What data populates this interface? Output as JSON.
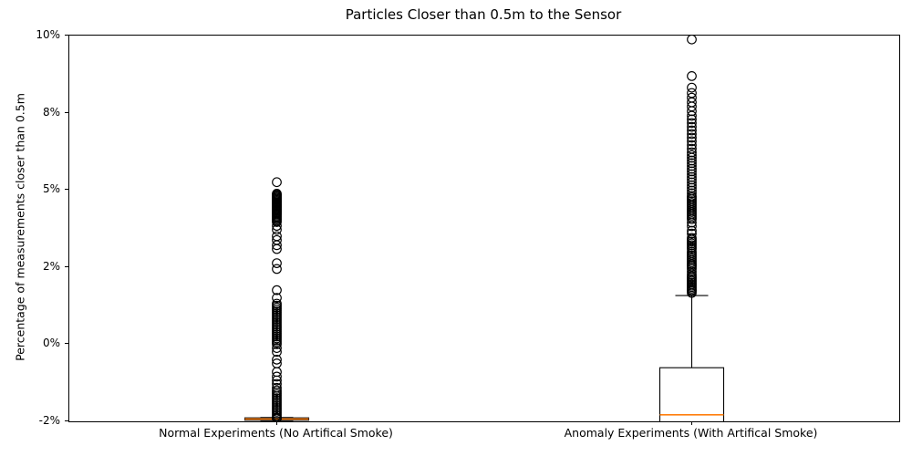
{
  "chart_data": {
    "type": "box",
    "title": "Particles Closer than 0.5m to the Sensor",
    "xlabel": "",
    "ylabel": "Percentage of measurements closer than 0.5m",
    "categories": [
      "Normal Experiments (No Artifical Smoke)",
      "Anomaly Experiments (With Artifical Smoke)"
    ],
    "y_ticks": {
      "values": [
        10,
        8,
        5,
        2,
        0,
        -2
      ],
      "labels": [
        "10%",
        "8%",
        "5%",
        "2%",
        "0%",
        "-2%"
      ],
      "note": "ticks are equally spaced on the axis despite uneven value steps"
    },
    "grid": false,
    "legend": false,
    "colors": {
      "box_edge": "#000000",
      "median": "#ff7f0e",
      "background": "#ffffff"
    },
    "series": [
      {
        "name": "Normal Experiments (No Artifical Smoke)",
        "q1": -1.97,
        "median": -1.94,
        "q3": -1.91,
        "whisker_low": -1.98,
        "whisker_high": -1.9,
        "outliers": [
          5.3,
          4.85,
          4.81,
          4.77,
          4.73,
          4.69,
          4.65,
          4.61,
          4.57,
          4.53,
          4.49,
          4.45,
          4.41,
          4.37,
          4.33,
          4.29,
          4.25,
          4.21,
          4.17,
          4.13,
          4.09,
          4.05,
          4.0,
          3.95,
          3.9,
          3.85,
          3.8,
          3.75,
          3.6,
          3.45,
          3.2,
          3.05,
          2.85,
          2.7,
          2.15,
          1.95,
          1.4,
          1.2,
          1.05,
          1.0,
          0.95,
          0.9,
          0.85,
          0.8,
          0.75,
          0.7,
          0.65,
          0.6,
          0.55,
          0.5,
          0.45,
          0.4,
          0.35,
          0.3,
          0.25,
          0.2,
          0.15,
          0.1,
          0.05,
          0.0,
          -0.1,
          -0.2,
          -0.4,
          -0.5,
          -0.72,
          -0.84,
          -0.94,
          -1.03,
          -1.13,
          -1.2,
          -1.25,
          -1.3,
          -1.35,
          -1.4,
          -1.45,
          -1.5,
          -1.55,
          -1.6,
          -1.65,
          -1.7,
          -1.75,
          -1.8,
          -1.85,
          -1.9,
          -1.93
        ]
      },
      {
        "name": "Anomaly Experiments (With Artifical Smoke)",
        "q1": -2.05,
        "median": -1.83,
        "q3": -0.61,
        "whisker_low": -2.05,
        "whisker_high": 1.26,
        "outliers": [
          9.9,
          8.95,
          8.65,
          8.51,
          8.39,
          8.27,
          8.16,
          8.04,
          7.88,
          7.74,
          7.6,
          7.45,
          7.31,
          7.17,
          7.03,
          6.89,
          6.74,
          6.6,
          6.46,
          6.35,
          6.25,
          6.14,
          6.04,
          5.93,
          5.82,
          5.72,
          5.61,
          5.5,
          5.4,
          5.29,
          5.18,
          5.08,
          4.97,
          4.87,
          4.76,
          4.7,
          4.63,
          4.56,
          4.49,
          4.42,
          4.35,
          4.28,
          4.21,
          4.14,
          4.07,
          4.0,
          3.93,
          3.86,
          3.73,
          3.59,
          3.41,
          3.3,
          3.13,
          3.06,
          2.99,
          2.92,
          2.85,
          2.77,
          2.7,
          2.6,
          2.53,
          2.46,
          2.39,
          2.32,
          2.25,
          2.18,
          2.11,
          2.06,
          2.0,
          1.95,
          1.88,
          1.81,
          1.76,
          1.72,
          1.68,
          1.64,
          1.6,
          1.56,
          1.52,
          1.48,
          1.44,
          1.4,
          1.38,
          1.33
        ]
      }
    ]
  }
}
